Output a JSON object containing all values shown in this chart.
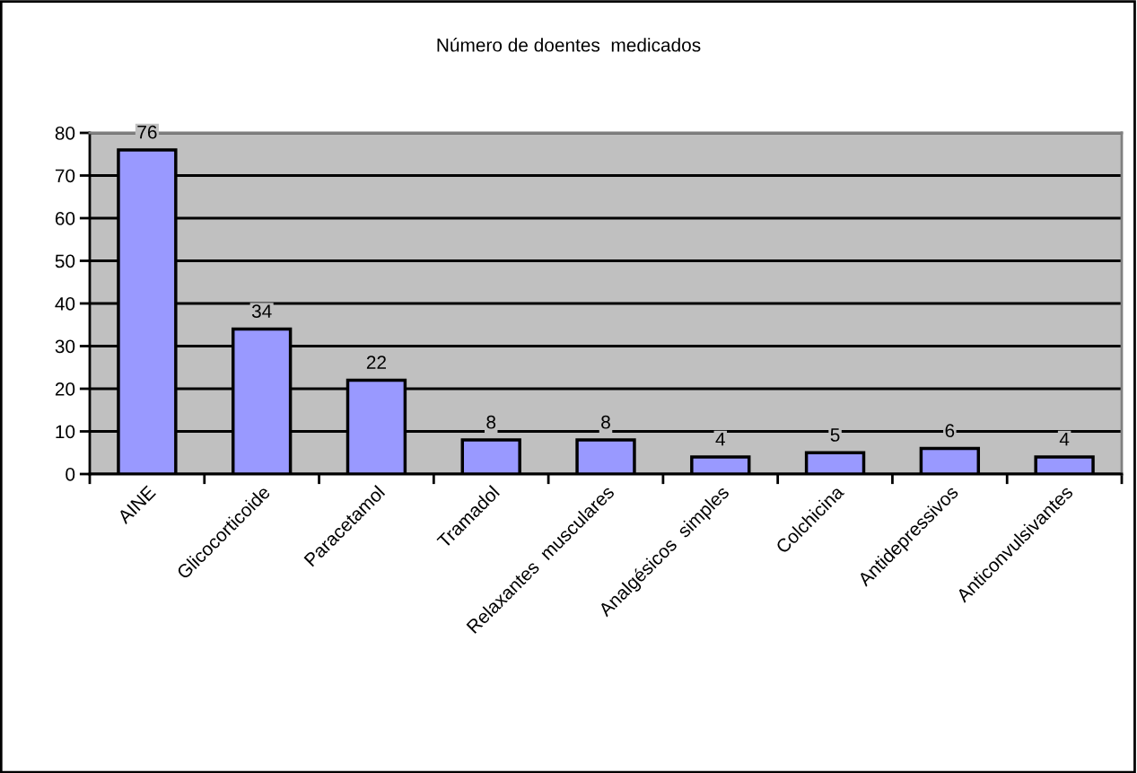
{
  "chart_data": {
    "type": "bar",
    "title": "Número de doentes  medicados",
    "categories": [
      "AINE",
      "Glicocorticoide",
      "Paracetamol",
      "Tramadol",
      "Relaxantes  musculares",
      "Analgésicos  simples",
      "Colchicina",
      "Antidepressivos",
      "Anticonvulsivantes"
    ],
    "values": [
      76,
      34,
      22,
      8,
      8,
      4,
      5,
      6,
      4
    ],
    "color": "#9999ff",
    "ylim": [
      0,
      80
    ],
    "yticks": [
      0,
      10,
      20,
      30,
      40,
      50,
      60,
      70,
      80
    ],
    "grid": "y",
    "data_labels": true
  }
}
